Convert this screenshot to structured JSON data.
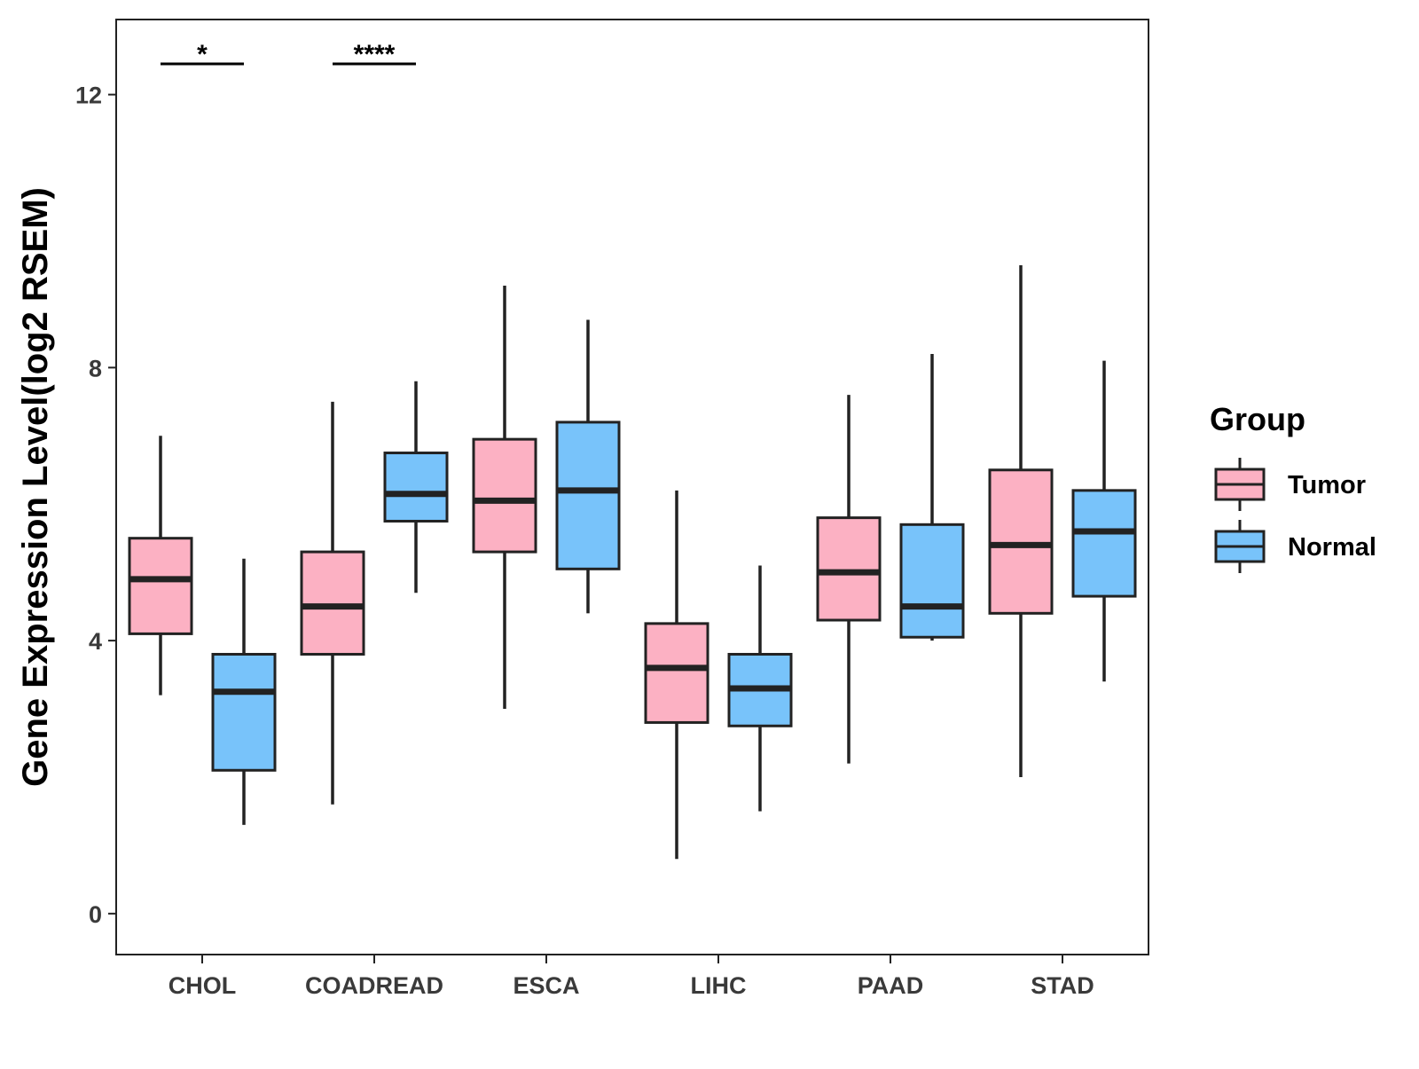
{
  "chart_data": {
    "type": "boxplot",
    "title": "",
    "xlabel": "",
    "ylabel": "Gene Expression Level(log2 RSEM)",
    "ylim": [
      -0.6,
      13.1
    ],
    "yticks": [
      0,
      4,
      8,
      12
    ],
    "categories": [
      "CHOL",
      "COADREAD",
      "ESCA",
      "LIHC",
      "PAAD",
      "STAD"
    ],
    "legend": {
      "title": "Group",
      "position": "right",
      "entries": [
        {
          "name": "Tumor",
          "color": "#FCB1C3"
        },
        {
          "name": "Normal",
          "color": "#78C3FA"
        }
      ]
    },
    "series": [
      {
        "name": "Tumor",
        "color": "#FCB1C3",
        "boxes": [
          {
            "min": 3.2,
            "q1": 4.1,
            "median": 4.9,
            "q3": 5.5,
            "max": 7.0
          },
          {
            "min": 1.6,
            "q1": 3.8,
            "median": 4.5,
            "q3": 5.3,
            "max": 7.5
          },
          {
            "min": 3.0,
            "q1": 5.3,
            "median": 6.05,
            "q3": 6.95,
            "max": 9.2
          },
          {
            "min": 0.8,
            "q1": 2.8,
            "median": 3.6,
            "q3": 4.25,
            "max": 6.2
          },
          {
            "min": 2.2,
            "q1": 4.3,
            "median": 5.0,
            "q3": 5.8,
            "max": 7.6
          },
          {
            "min": 2.0,
            "q1": 4.4,
            "median": 5.4,
            "q3": 6.5,
            "max": 9.5
          }
        ]
      },
      {
        "name": "Normal",
        "color": "#78C3FA",
        "boxes": [
          {
            "min": 1.3,
            "q1": 2.1,
            "median": 3.25,
            "q3": 3.8,
            "max": 5.2
          },
          {
            "min": 4.7,
            "q1": 5.75,
            "median": 6.15,
            "q3": 6.75,
            "max": 7.8
          },
          {
            "min": 4.4,
            "q1": 5.05,
            "median": 6.2,
            "q3": 7.2,
            "max": 8.7
          },
          {
            "min": 1.5,
            "q1": 2.75,
            "median": 3.3,
            "q3": 3.8,
            "max": 5.1
          },
          {
            "min": 4.0,
            "q1": 4.05,
            "median": 4.5,
            "q3": 5.7,
            "max": 8.2
          },
          {
            "min": 3.4,
            "q1": 4.65,
            "median": 5.6,
            "q3": 6.2,
            "max": 8.1
          }
        ]
      }
    ],
    "annotations": [
      {
        "category": "CHOL",
        "label": "*",
        "y": 12.45
      },
      {
        "category": "COADREAD",
        "label": "****",
        "y": 12.45
      }
    ]
  }
}
